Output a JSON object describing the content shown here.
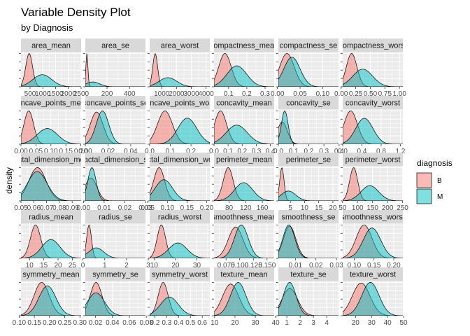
{
  "chart_data": {
    "type": "area",
    "title": "Variable Density Plot",
    "subtitle": "by Diagnosis",
    "xlabel": "",
    "ylabel": "density",
    "grid": true,
    "facet_layout": "5 rows x 6 columns, free scales",
    "legend": {
      "title": "diagnosis",
      "position": "right",
      "entries": [
        {
          "name": "B",
          "color": "#F8766D"
        },
        {
          "name": "M",
          "color": "#00BFC4"
        }
      ]
    },
    "series_names": [
      "B",
      "M"
    ],
    "panels": [
      {
        "label": "area_mean",
        "xlim": [
          143,
          2501
        ],
        "ticks": [
          500,
          1000,
          1500,
          2000,
          2500
        ],
        "tick_labels": [
          "500",
          "1000",
          "1500",
          "2000",
          "2500"
        ],
        "B": {
          "mean": 463,
          "sd": 134
        },
        "M": {
          "mean": 978,
          "sd": 368
        }
      },
      {
        "label": "area_se",
        "xlim": [
          6.8,
          542
        ],
        "ticks": [
          200,
          400
        ],
        "tick_labels": [
          "200",
          "400"
        ],
        "B": {
          "mean": 21,
          "sd": 9
        },
        "M": {
          "mean": 73,
          "sd": 62
        }
      },
      {
        "label": "area_worst",
        "xlim": [
          185,
          4254
        ],
        "ticks": [
          1000,
          2000,
          3000,
          4000
        ],
        "tick_labels": [
          "1000",
          "2000",
          "3000",
          "4000"
        ],
        "B": {
          "mean": 559,
          "sd": 164
        },
        "M": {
          "mean": 1422,
          "sd": 598
        }
      },
      {
        "label": "compactness_mean",
        "xlim": [
          0.02,
          0.35
        ],
        "ticks": [
          0.1,
          0.2,
          0.3
        ],
        "tick_labels": [
          "0.1",
          "0.2",
          "0.3"
        ],
        "B": {
          "mean": 0.08,
          "sd": 0.034
        },
        "M": {
          "mean": 0.145,
          "sd": 0.054
        }
      },
      {
        "label": "compactness_se",
        "xlim": [
          0.002,
          0.135
        ],
        "ticks": [
          0.0,
          0.05,
          0.1
        ],
        "tick_labels": [
          "0.00",
          "0.05",
          "0.10"
        ],
        "B": {
          "mean": 0.021,
          "sd": 0.016
        },
        "M": {
          "mean": 0.032,
          "sd": 0.018
        }
      },
      {
        "label": "compactness_worst",
        "xlim": [
          0.027,
          1.058
        ],
        "ticks": [
          0.0,
          0.25,
          0.5,
          0.75,
          1.0
        ],
        "tick_labels": [
          "0.00",
          "0.25",
          "0.50",
          "0.75",
          "1.00"
        ],
        "B": {
          "mean": 0.18,
          "sd": 0.09
        },
        "M": {
          "mean": 0.37,
          "sd": 0.17
        }
      },
      {
        "label": "concave_points_mean",
        "xlim": [
          0,
          0.201
        ],
        "ticks": [
          0.0,
          0.05,
          0.1,
          0.15,
          0.2
        ],
        "tick_labels": [
          "0.00",
          "0.05",
          "0.10",
          "0.15",
          "0.20"
        ],
        "B": {
          "mean": 0.026,
          "sd": 0.016
        },
        "M": {
          "mean": 0.088,
          "sd": 0.034
        }
      },
      {
        "label": "concave_points_se",
        "xlim": [
          0,
          0.053
        ],
        "ticks": [
          0.0,
          0.02,
          0.04
        ],
        "tick_labels": [
          "0.00",
          "0.02",
          "0.04"
        ],
        "B": {
          "mean": 0.0099,
          "sd": 0.0057
        },
        "M": {
          "mean": 0.0151,
          "sd": 0.0055
        }
      },
      {
        "label": "concave_points_worst",
        "xlim": [
          0,
          0.291
        ],
        "ticks": [
          0.0,
          0.1,
          0.2
        ],
        "tick_labels": [
          "0.0",
          "0.1",
          "0.2"
        ],
        "B": {
          "mean": 0.074,
          "sd": 0.036
        },
        "M": {
          "mean": 0.182,
          "sd": 0.046
        }
      },
      {
        "label": "concavity_mean",
        "xlim": [
          0,
          0.427
        ],
        "ticks": [
          0.0,
          0.1,
          0.2,
          0.3,
          0.4
        ],
        "tick_labels": [
          "0.0",
          "0.1",
          "0.2",
          "0.3",
          "0.4"
        ],
        "B": {
          "mean": 0.046,
          "sd": 0.043
        },
        "M": {
          "mean": 0.161,
          "sd": 0.075
        }
      },
      {
        "label": "concavity_se",
        "xlim": [
          0,
          0.396
        ],
        "ticks": [
          0.0,
          0.1,
          0.2,
          0.3,
          0.4
        ],
        "tick_labels": [
          "0.0",
          "0.1",
          "0.2",
          "0.3",
          "0.4"
        ],
        "B": {
          "mean": 0.026,
          "sd": 0.033
        },
        "M": {
          "mean": 0.042,
          "sd": 0.022
        }
      },
      {
        "label": "concavity_worst",
        "xlim": [
          0,
          1.252
        ],
        "ticks": [
          0.0,
          0.4,
          0.8,
          1.2
        ],
        "tick_labels": [
          "0.0",
          "0.4",
          "0.8",
          "1.2"
        ],
        "B": {
          "mean": 0.166,
          "sd": 0.14
        },
        "M": {
          "mean": 0.45,
          "sd": 0.18
        }
      },
      {
        "label": "fractal_dimension_mean",
        "xlim": [
          0.05,
          0.097
        ],
        "ticks": [
          0.05,
          0.06,
          0.07,
          0.08,
          0.09
        ],
        "tick_labels": [
          "0.05",
          "0.06",
          "0.07",
          "0.08",
          "0.09"
        ],
        "B": {
          "mean": 0.0629,
          "sd": 0.0067
        },
        "M": {
          "mean": 0.0627,
          "sd": 0.0076
        }
      },
      {
        "label": "fractal_dimension_se",
        "xlim": [
          0.0009,
          0.03
        ],
        "ticks": [
          0.0,
          0.01,
          0.02,
          0.03
        ],
        "tick_labels": [
          "0.00",
          "0.01",
          "0.02",
          "0.03"
        ],
        "B": {
          "mean": 0.0036,
          "sd": 0.0029
        },
        "M": {
          "mean": 0.0041,
          "sd": 0.002
        }
      },
      {
        "label": "fractal_dimension_worst",
        "xlim": [
          0.055,
          0.208
        ],
        "ticks": [
          0.05,
          0.1,
          0.15,
          0.2
        ],
        "tick_labels": [
          "0.05",
          "0.10",
          "0.15",
          "0.20"
        ],
        "B": {
          "mean": 0.079,
          "sd": 0.014
        },
        "M": {
          "mean": 0.091,
          "sd": 0.022
        }
      },
      {
        "label": "perimeter_mean",
        "xlim": [
          43.8,
          188.5
        ],
        "ticks": [
          80,
          120,
          160
        ],
        "tick_labels": [
          "80",
          "120",
          "160"
        ],
        "B": {
          "mean": 78,
          "sd": 12
        },
        "M": {
          "mean": 115,
          "sd": 21.9
        }
      },
      {
        "label": "perimeter_se",
        "xlim": [
          0.76,
          22
        ],
        "ticks": [
          5,
          10,
          15,
          20
        ],
        "tick_labels": [
          "5",
          "10",
          "15",
          "20"
        ],
        "B": {
          "mean": 2.0,
          "sd": 0.77
        },
        "M": {
          "mean": 4.3,
          "sd": 2.6
        }
      },
      {
        "label": "perimeter_worst",
        "xlim": [
          50.4,
          251.2
        ],
        "ticks": [
          50,
          100,
          150,
          200,
          250
        ],
        "tick_labels": [
          "50",
          "100",
          "150",
          "200",
          "250"
        ],
        "B": {
          "mean": 87,
          "sd": 13.5
        },
        "M": {
          "mean": 141,
          "sd": 29.5
        }
      },
      {
        "label": "radius_mean",
        "xlim": [
          6.98,
          28.1
        ],
        "ticks": [
          10,
          15,
          20,
          25
        ],
        "tick_labels": [
          "10",
          "15",
          "20",
          "25"
        ],
        "B": {
          "mean": 12.1,
          "sd": 1.8
        },
        "M": {
          "mean": 17.5,
          "sd": 3.2
        }
      },
      {
        "label": "radius_se",
        "xlim": [
          0.11,
          2.87
        ],
        "ticks": [
          0,
          1,
          2,
          3
        ],
        "tick_labels": [
          "0",
          "1",
          "2",
          "3"
        ],
        "B": {
          "mean": 0.28,
          "sd": 0.11
        },
        "M": {
          "mean": 0.61,
          "sd": 0.35
        }
      },
      {
        "label": "radius_worst",
        "xlim": [
          7.93,
          36.04
        ],
        "ticks": [
          10,
          20,
          30
        ],
        "tick_labels": [
          "10",
          "20",
          "30"
        ],
        "B": {
          "mean": 13.4,
          "sd": 1.98
        },
        "M": {
          "mean": 21.1,
          "sd": 4.3
        }
      },
      {
        "label": "smoothness_mean",
        "xlim": [
          0.053,
          0.163
        ],
        "ticks": [
          0.075,
          0.1,
          0.125,
          0.15
        ],
        "tick_labels": [
          "0.075",
          "0.100",
          "0.125",
          "0.150"
        ],
        "B": {
          "mean": 0.0925,
          "sd": 0.0134
        },
        "M": {
          "mean": 0.1029,
          "sd": 0.0126
        }
      },
      {
        "label": "smoothness_se",
        "xlim": [
          0.0017,
          0.031
        ],
        "ticks": [
          0.01,
          0.02,
          0.03
        ],
        "tick_labels": [
          "0.01",
          "0.02",
          "0.03"
        ],
        "B": {
          "mean": 0.0072,
          "sd": 0.003
        },
        "M": {
          "mean": 0.0068,
          "sd": 0.0029
        }
      },
      {
        "label": "smoothness_worst",
        "xlim": [
          0.071,
          0.223
        ],
        "ticks": [
          0.1,
          0.15,
          0.2
        ],
        "tick_labels": [
          "0.10",
          "0.15",
          "0.20"
        ],
        "B": {
          "mean": 0.125,
          "sd": 0.02
        },
        "M": {
          "mean": 0.145,
          "sd": 0.022
        }
      },
      {
        "label": "symmetry_mean",
        "xlim": [
          0.106,
          0.304
        ],
        "ticks": [
          0.1,
          0.15,
          0.2,
          0.25,
          0.3
        ],
        "tick_labels": [
          "0.10",
          "0.15",
          "0.20",
          "0.25",
          "0.30"
        ],
        "B": {
          "mean": 0.174,
          "sd": 0.025
        },
        "M": {
          "mean": 0.193,
          "sd": 0.028
        }
      },
      {
        "label": "symmetry_se",
        "xlim": [
          0.0079,
          0.079
        ],
        "ticks": [
          0.02,
          0.04,
          0.06,
          0.08
        ],
        "tick_labels": [
          "0.02",
          "0.04",
          "0.06",
          "0.08"
        ],
        "B": {
          "mean": 0.0206,
          "sd": 0.007
        },
        "M": {
          "mean": 0.0205,
          "sd": 0.0102
        }
      },
      {
        "label": "symmetry_worst",
        "xlim": [
          0.156,
          0.664
        ],
        "ticks": [
          0.2,
          0.3,
          0.4,
          0.5,
          0.6
        ],
        "tick_labels": [
          "0.2",
          "0.3",
          "0.4",
          "0.5",
          "0.6"
        ],
        "B": {
          "mean": 0.27,
          "sd": 0.042
        },
        "M": {
          "mean": 0.323,
          "sd": 0.075
        }
      },
      {
        "label": "texture_mean",
        "xlim": [
          9.71,
          39.28
        ],
        "ticks": [
          10,
          20,
          30,
          40
        ],
        "tick_labels": [
          "10",
          "20",
          "30",
          "40"
        ],
        "B": {
          "mean": 17.9,
          "sd": 4.0
        },
        "M": {
          "mean": 21.6,
          "sd": 3.8
        }
      },
      {
        "label": "texture_se",
        "xlim": [
          0.36,
          4.89
        ],
        "ticks": [
          1,
          2,
          3,
          4
        ],
        "tick_labels": [
          "1",
          "2",
          "3",
          "4"
        ],
        "B": {
          "mean": 1.22,
          "sd": 0.59
        },
        "M": {
          "mean": 1.21,
          "sd": 0.48
        }
      },
      {
        "label": "texture_worst",
        "xlim": [
          12.0,
          49.54
        ],
        "ticks": [
          20,
          30,
          40,
          50
        ],
        "tick_labels": [
          "20",
          "30",
          "40",
          "50"
        ],
        "B": {
          "mean": 23.5,
          "sd": 5.5
        },
        "M": {
          "mean": 29.3,
          "sd": 5.4
        }
      }
    ]
  }
}
